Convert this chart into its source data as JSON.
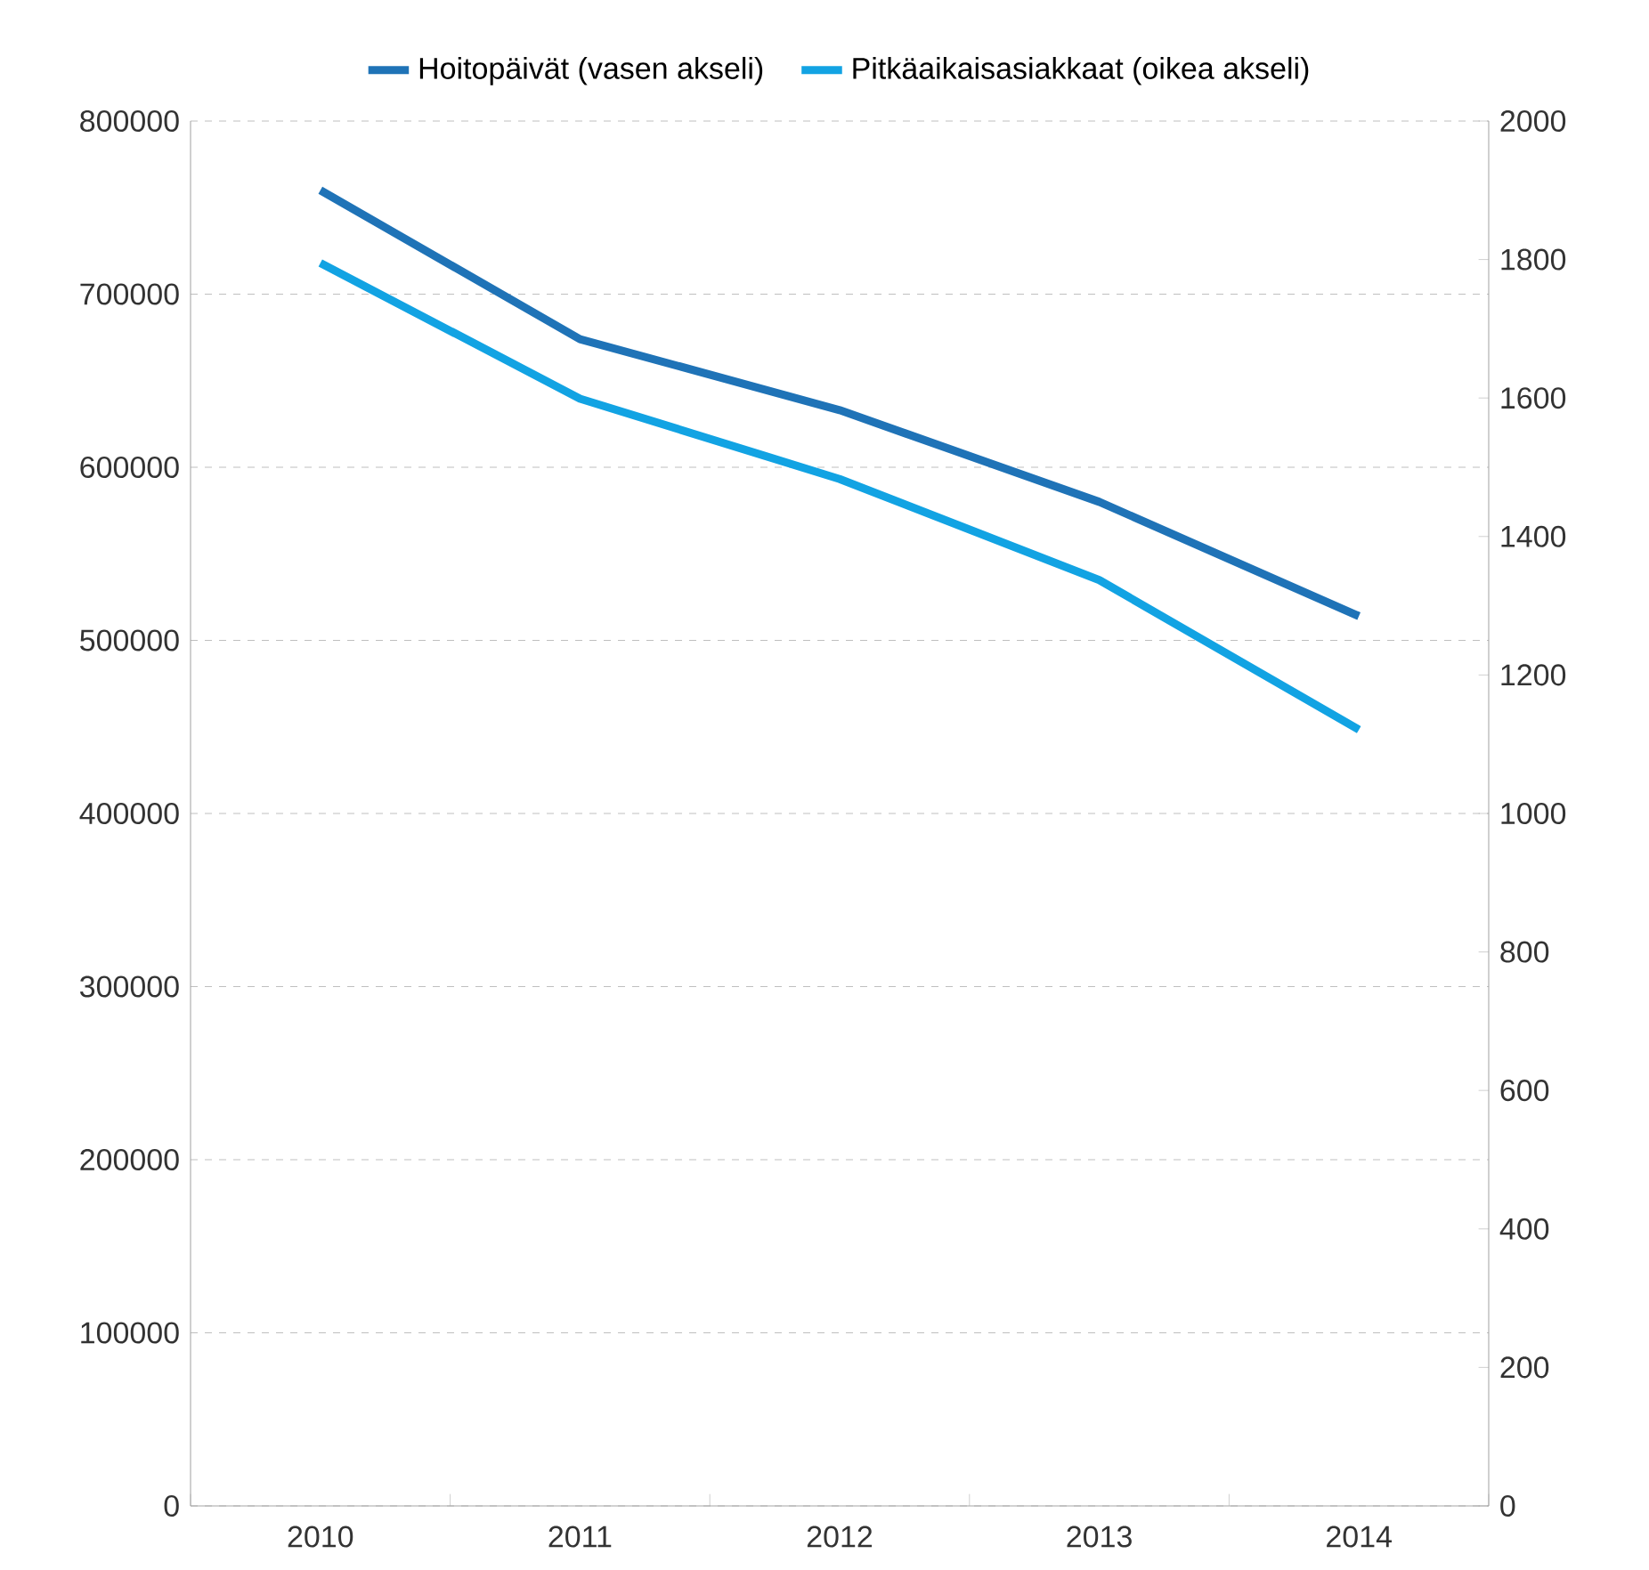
{
  "chart_data": {
    "type": "line",
    "categories": [
      "2010",
      "2011",
      "2012",
      "2013",
      "2014"
    ],
    "series": [
      {
        "name": "Hoitopäivät (vasen akseli)",
        "color": "#1f73b7",
        "values": [
          760000,
          674000,
          633000,
          580000,
          514000
        ]
      },
      {
        "name": "Pitkäaikaisasiakkaat (oikea akseli)",
        "color": "#12a3e3",
        "axis": "y2",
        "values": [
          1795,
          1599,
          1483,
          1337,
          1121
        ]
      }
    ],
    "ylim": [
      0,
      800000
    ],
    "yticks": [
      0,
      100000,
      200000,
      300000,
      400000,
      500000,
      600000,
      700000,
      800000
    ],
    "y2lim": [
      0,
      2000
    ],
    "y2ticks": [
      0,
      200,
      400,
      600,
      800,
      1000,
      1200,
      1400,
      1600,
      1800,
      2000
    ],
    "grid": "y",
    "legend": "top"
  }
}
